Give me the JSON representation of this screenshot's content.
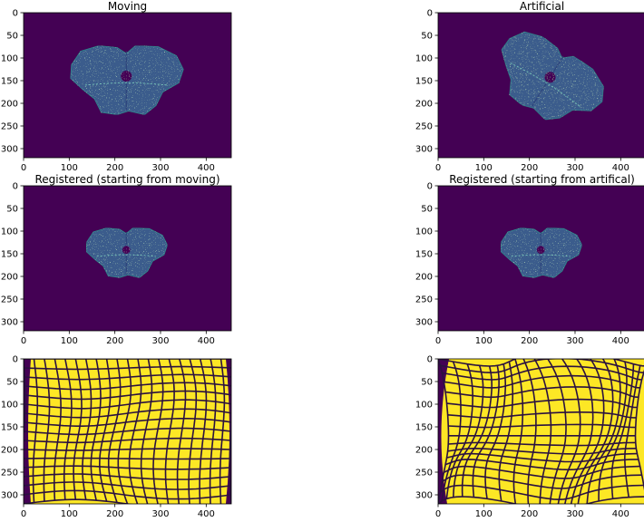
{
  "panels": [
    {
      "title": "Moving"
    },
    {
      "title": "Artificial"
    },
    {
      "title": "Registered (starting from moving)"
    },
    {
      "title": "Registered (starting from artifical)"
    },
    {
      "title": ""
    },
    {
      "title": ""
    }
  ],
  "axes": {
    "x_ticks": [
      "0",
      "100",
      "200",
      "300",
      "400"
    ],
    "y_ticks": [
      "0",
      "50",
      "100",
      "150",
      "200",
      "250",
      "300"
    ]
  },
  "colors": {
    "background": "#440154",
    "tissue": "#3b5c8c",
    "tissue_light": "#2f8a8c",
    "grid_fill": "#fde725",
    "grid_line": "#2a1140"
  }
}
